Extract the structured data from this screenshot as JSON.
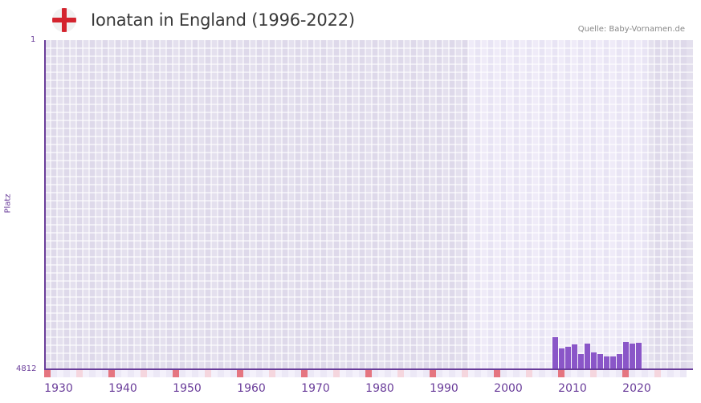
{
  "header": {
    "title": "Ionatan in England (1996-2022)",
    "flag_icon": "england-flag-icon",
    "source": "Quelle: Baby-Vornamen.de"
  },
  "colors": {
    "bar": "#8a56c8",
    "axis": "#6a3d9a",
    "band_outer": "#e4e0ee",
    "band_inner": "#efebf8",
    "decade_mark": "#e57580",
    "half_decade_mark": "#f5d6de",
    "flag_red": "#d4242e"
  },
  "chart_data": {
    "type": "bar",
    "title": "Ionatan in England (1996-2022)",
    "xlabel": "",
    "ylabel": "Platz",
    "y_inverted": true,
    "ylim": [
      1,
      4812
    ],
    "y_ticks": [
      "1",
      "4812"
    ],
    "xlim": [
      1928,
      2028
    ],
    "x_ticks": [
      "1930",
      "1940",
      "1950",
      "1960",
      "1970",
      "1980",
      "1990",
      "2000",
      "2010",
      "2020"
    ],
    "highlight_range": [
      1996,
      2022
    ],
    "grid": true,
    "categories": [
      2007,
      2008,
      2009,
      2010,
      2011,
      2012,
      2013,
      2014,
      2015,
      2016,
      2017,
      2018,
      2019,
      2020
    ],
    "values": [
      4343,
      4507,
      4483,
      4448,
      4589,
      4436,
      4566,
      4589,
      4624,
      4624,
      4589,
      4413,
      4436,
      4425
    ]
  },
  "axis": {
    "y_top": "1",
    "y_bottom": "4812",
    "y_title": "Platz"
  }
}
